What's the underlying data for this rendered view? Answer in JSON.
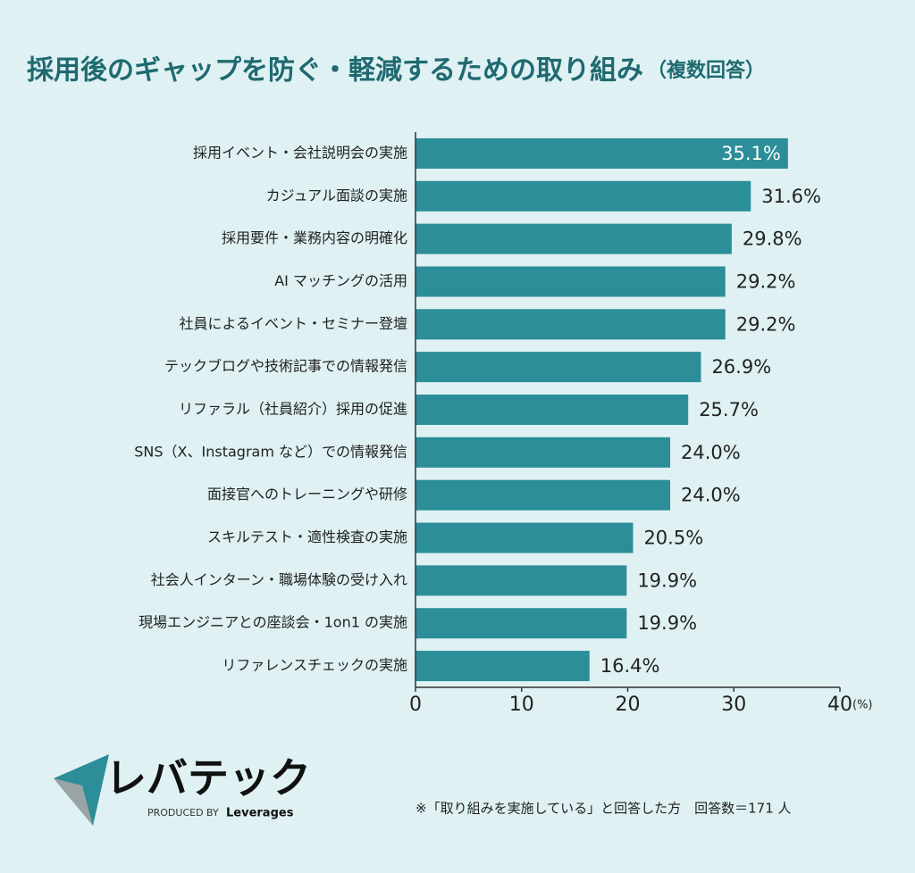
{
  "chart_data": {
    "type": "bar",
    "orientation": "horizontal",
    "title": "採用後のギャップを防ぐ・軽減するための取り組み",
    "subtitle": "（複数回答）",
    "categories": [
      "採用イベント・会社説明会の実施",
      "カジュアル面談の実施",
      "採用要件・業務内容の明確化",
      "AI マッチングの活用",
      "社員によるイベント・セミナー登壇",
      "テックブログや技術記事での情報発信",
      "リファラル（社員紹介）採用の促進",
      "SNS（X、Instagram など）での情報発信",
      "面接官へのトレーニングや研修",
      "スキルテスト・適性検査の実施",
      "社会人インターン・職場体験の受け入れ",
      "現場エンジニアとの座談会・1on1 の実施",
      "リファレンスチェックの実施"
    ],
    "values": [
      35.1,
      31.6,
      29.8,
      29.2,
      29.2,
      26.9,
      25.7,
      24.0,
      24.0,
      20.5,
      19.9,
      19.9,
      16.4
    ],
    "value_labels": [
      "35.1%",
      "31.6%",
      "29.8%",
      "29.2%",
      "29.2%",
      "26.9%",
      "25.7%",
      "24.0%",
      "24.0%",
      "20.5%",
      "19.9%",
      "19.9%",
      "16.4%"
    ],
    "color": "#2b8e98",
    "xlim": [
      0,
      40
    ],
    "xticks": [
      0,
      10,
      20,
      30,
      40
    ],
    "x_unit": "(%)",
    "note": "※「取り組みを実施している」と回答した方　回答数＝171 人"
  },
  "brand": {
    "name": "レバテック",
    "tagline": "PRODUCED BY",
    "company": "Leverages"
  }
}
